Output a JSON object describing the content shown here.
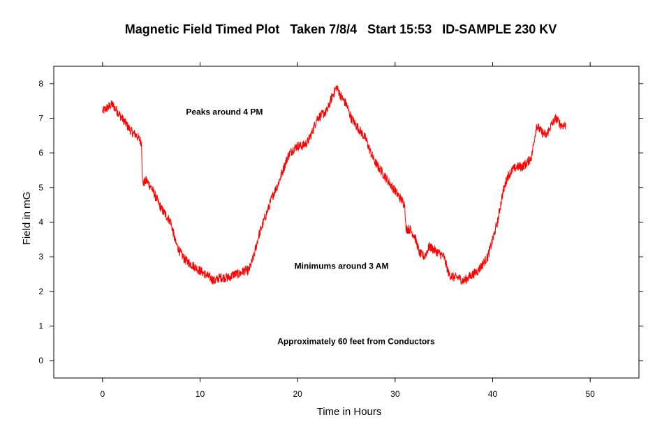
{
  "chart_data": {
    "type": "line",
    "title": "Magnetic Field Timed Plot   Taken 7/8/4   Start 15:53   ID-SAMPLE 230 KV",
    "xlabel": "Time in Hours",
    "ylabel": "Field in mG",
    "xlim": [
      -5,
      55
    ],
    "ylim": [
      -0.5,
      8.5
    ],
    "xticks": [
      0,
      10,
      20,
      30,
      40,
      50
    ],
    "yticks": [
      0,
      1,
      2,
      3,
      4,
      5,
      6,
      7,
      8
    ],
    "grid": false,
    "line_color": "#ff0000",
    "series": [
      {
        "x": [
          0,
          0.5,
          1,
          1.5,
          2,
          2.5,
          3,
          3.5,
          4,
          4.1,
          4.5,
          5,
          5.5,
          6,
          6.5,
          7,
          7.5,
          8,
          8.5,
          9,
          9.5,
          10,
          10.5,
          11,
          11.5,
          12,
          12.5,
          13,
          13.5,
          14,
          14.5,
          15,
          15.5,
          16,
          16.5,
          17,
          17.5,
          18,
          18.5,
          19,
          19.5,
          20,
          20.5,
          21,
          21.5,
          22,
          22.5,
          23,
          23.5,
          24,
          24.5,
          25,
          25.5,
          26,
          26.5,
          27,
          27.5,
          28,
          28.5,
          29,
          29.5,
          30,
          30.5,
          31,
          31.1,
          31.5,
          32,
          32.5,
          33,
          33.5,
          34,
          34.5,
          35,
          35.5,
          36,
          36.5,
          37,
          37.5,
          38,
          38.5,
          39,
          39.5,
          40,
          40.5,
          41,
          41.5,
          42,
          42.5,
          43,
          43.5,
          44,
          44.5,
          45,
          45.5,
          46,
          46.5,
          47,
          47.5
        ],
        "y": [
          7.2,
          7.3,
          7.4,
          7.2,
          7.0,
          6.8,
          6.6,
          6.5,
          6.3,
          5.1,
          5.2,
          5.0,
          4.7,
          4.4,
          4.2,
          4.0,
          3.4,
          3.1,
          2.9,
          2.8,
          2.7,
          2.6,
          2.5,
          2.4,
          2.3,
          2.4,
          2.4,
          2.4,
          2.5,
          2.5,
          2.6,
          2.6,
          3.0,
          3.6,
          4.0,
          4.4,
          4.8,
          5.1,
          5.5,
          5.9,
          6.1,
          6.2,
          6.2,
          6.3,
          6.6,
          7.0,
          7.1,
          7.2,
          7.6,
          7.9,
          7.6,
          7.4,
          7.0,
          6.8,
          6.6,
          6.4,
          6.0,
          5.7,
          5.5,
          5.3,
          5.1,
          4.9,
          4.7,
          4.5,
          3.8,
          3.8,
          3.6,
          3.1,
          3.0,
          3.3,
          3.2,
          3.1,
          3.0,
          2.5,
          2.4,
          2.4,
          2.3,
          2.4,
          2.5,
          2.6,
          2.8,
          3.0,
          3.5,
          4.0,
          4.8,
          5.3,
          5.5,
          5.6,
          5.6,
          5.7,
          5.9,
          6.8,
          6.6,
          6.5,
          6.8,
          7.0,
          6.8,
          6.8
        ]
      }
    ],
    "annotations": [
      {
        "text": "Peaks around 4 PM",
        "x": 12.5,
        "y": 7.1
      },
      {
        "text": "Minimums around 3 AM",
        "x": 24.5,
        "y": 2.65
      },
      {
        "text": "Approximately 60 feet from Conductors",
        "x": 26,
        "y": 0.48
      }
    ]
  }
}
